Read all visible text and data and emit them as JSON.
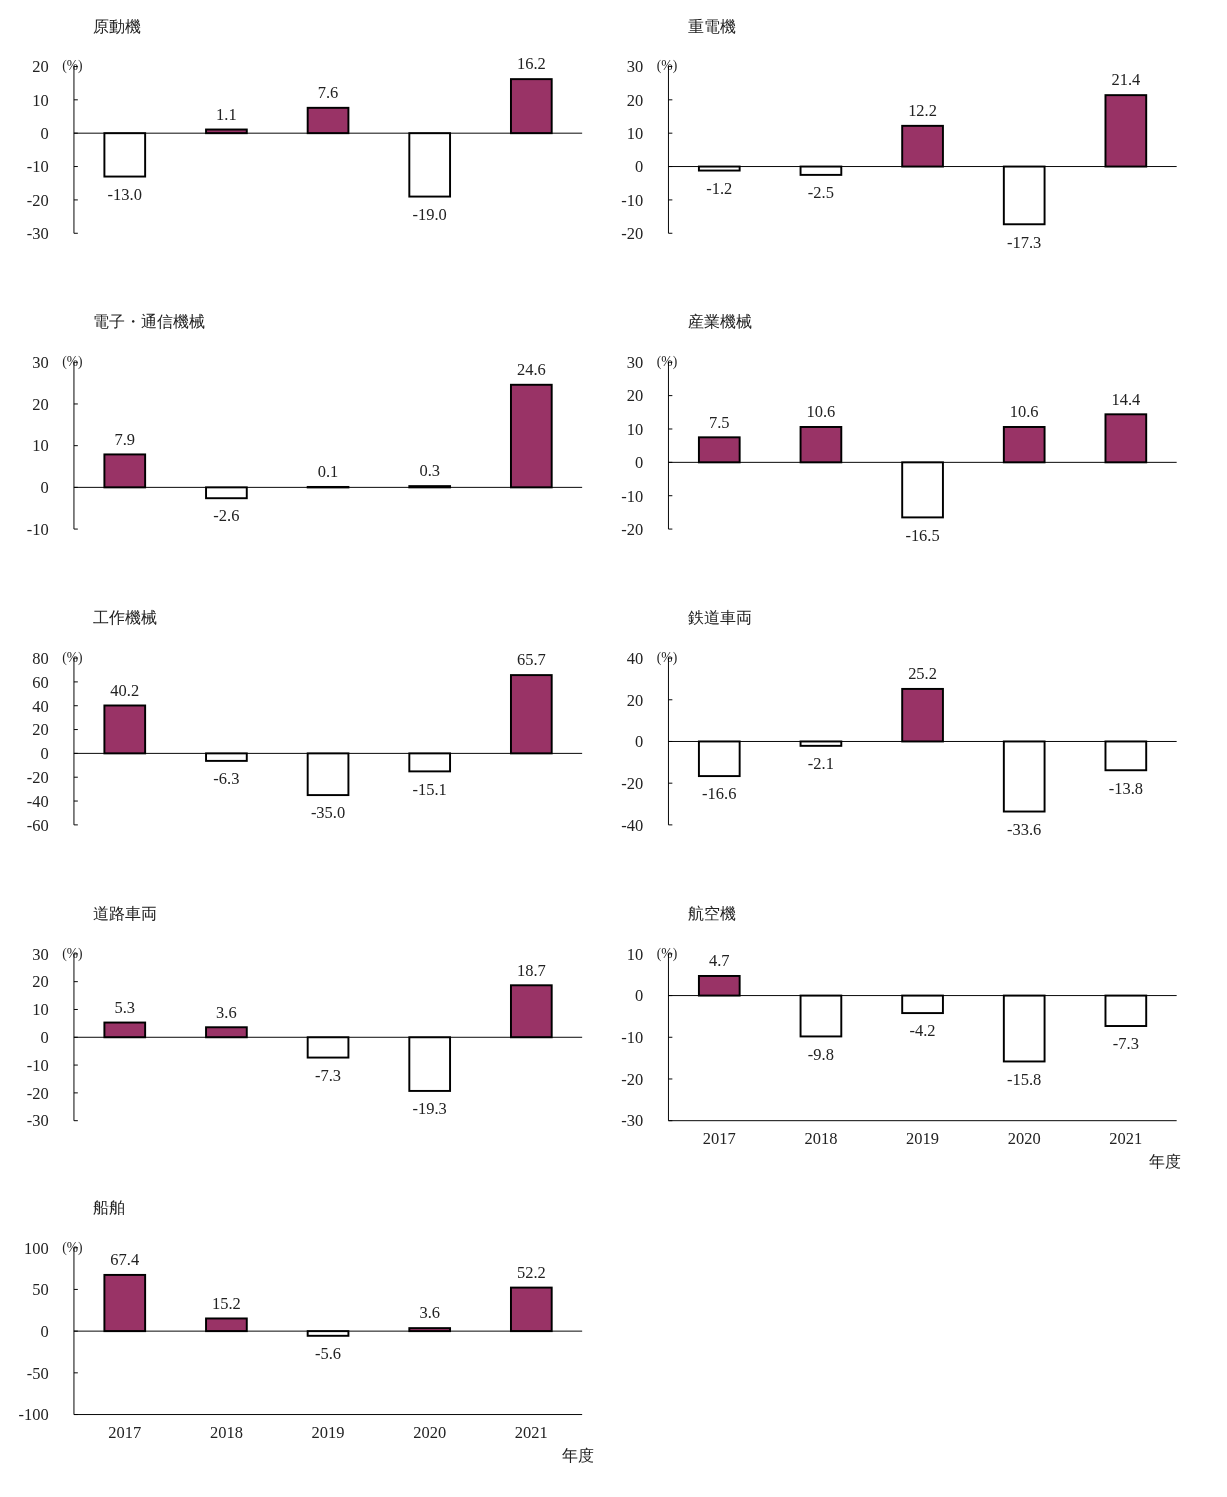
{
  "chart_data": [
    {
      "type": "bar",
      "title": "原動機",
      "ylabel": "(%)",
      "categories": [
        "2017",
        "2018",
        "2019",
        "2020",
        "2021"
      ],
      "values": [
        -13.0,
        1.1,
        7.6,
        -19.0,
        16.2
      ],
      "colors": [
        "#ffffff",
        "#993366",
        "#993366",
        "#ffffff",
        "#993366"
      ],
      "value_labels": [
        "-13.0",
        "1.1",
        "7.6",
        "-19.0",
        "16.2"
      ],
      "ylim": [
        -30,
        20
      ],
      "yticks": [
        -30,
        -20,
        -10,
        0,
        10,
        20
      ],
      "tick_labels": "y",
      "ref_lines": [
        {
          "axis": "y",
          "value": 0
        }
      ]
    },
    {
      "type": "bar",
      "title": "重電機",
      "ylabel": "(%)",
      "categories": [
        "2017",
        "2018",
        "2019",
        "2020",
        "2021"
      ],
      "values": [
        -1.2,
        -2.5,
        12.2,
        -17.3,
        21.4
      ],
      "colors": [
        "#ffffff",
        "#ffffff",
        "#993366",
        "#ffffff",
        "#993366"
      ],
      "value_labels": [
        "-1.2",
        "-2.5",
        "12.2",
        "-17.3",
        "21.4"
      ],
      "ylim": [
        -20,
        30
      ],
      "yticks": [
        -20,
        -10,
        0,
        10,
        20,
        30
      ],
      "tick_labels": "y",
      "ref_lines": [
        {
          "axis": "y",
          "value": 0
        }
      ]
    },
    {
      "type": "bar",
      "title": "電子・通信機械",
      "ylabel": "(%)",
      "categories": [
        "2017",
        "2018",
        "2019",
        "2020",
        "2021"
      ],
      "values": [
        7.9,
        -2.6,
        0.1,
        0.3,
        24.6
      ],
      "colors": [
        "#993366",
        "#ffffff",
        "#993366",
        "#993366",
        "#993366"
      ],
      "value_labels": [
        "7.9",
        "-2.6",
        "0.1",
        "0.3",
        "24.6"
      ],
      "ylim": [
        -10,
        30
      ],
      "yticks": [
        -10,
        0,
        10,
        20,
        30
      ],
      "tick_labels": "y",
      "ref_lines": [
        {
          "axis": "y",
          "value": 0
        }
      ]
    },
    {
      "type": "bar",
      "title": "産業機械",
      "ylabel": "(%)",
      "categories": [
        "2017",
        "2018",
        "2019",
        "2020",
        "2021"
      ],
      "values": [
        7.5,
        10.6,
        -16.5,
        10.6,
        14.4
      ],
      "colors": [
        "#993366",
        "#993366",
        "#ffffff",
        "#993366",
        "#993366"
      ],
      "value_labels": [
        "7.5",
        "10.6",
        "-16.5",
        "10.6",
        "14.4"
      ],
      "ylim": [
        -20,
        30
      ],
      "yticks": [
        -20,
        -10,
        0,
        10,
        20,
        30
      ],
      "tick_labels": "y",
      "ref_lines": [
        {
          "axis": "y",
          "value": 0
        }
      ]
    },
    {
      "type": "bar",
      "title": "工作機械",
      "ylabel": "(%)",
      "categories": [
        "2017",
        "2018",
        "2019",
        "2020",
        "2021"
      ],
      "values": [
        40.2,
        -6.3,
        -35.0,
        -15.1,
        65.7
      ],
      "colors": [
        "#993366",
        "#ffffff",
        "#ffffff",
        "#ffffff",
        "#993366"
      ],
      "value_labels": [
        "40.2",
        "-6.3",
        "-35.0",
        "-15.1",
        "65.7"
      ],
      "ylim": [
        -60,
        80
      ],
      "yticks": [
        -60,
        -40,
        -20,
        0,
        20,
        40,
        60,
        80
      ],
      "tick_labels": "y",
      "ref_lines": [
        {
          "axis": "y",
          "value": 0
        }
      ]
    },
    {
      "type": "bar",
      "title": "鉄道車両",
      "ylabel": "(%)",
      "categories": [
        "2017",
        "2018",
        "2019",
        "2020",
        "2021"
      ],
      "values": [
        -16.6,
        -2.1,
        25.2,
        -33.6,
        -13.8
      ],
      "colors": [
        "#ffffff",
        "#ffffff",
        "#993366",
        "#ffffff",
        "#ffffff"
      ],
      "value_labels": [
        "-16.6",
        "-2.1",
        "25.2",
        "-33.6",
        "-13.8"
      ],
      "ylim": [
        -40,
        40
      ],
      "yticks": [
        -40,
        -20,
        0,
        20,
        40
      ],
      "tick_labels": "y",
      "ref_lines": [
        {
          "axis": "y",
          "value": 0
        }
      ]
    },
    {
      "type": "bar",
      "title": "道路車両",
      "ylabel": "(%)",
      "categories": [
        "2017",
        "2018",
        "2019",
        "2020",
        "2021"
      ],
      "values": [
        5.3,
        3.6,
        -7.3,
        -19.3,
        18.7
      ],
      "colors": [
        "#993366",
        "#993366",
        "#ffffff",
        "#ffffff",
        "#993366"
      ],
      "value_labels": [
        "5.3",
        "3.6",
        "-7.3",
        "-19.3",
        "18.7"
      ],
      "ylim": [
        -30,
        30
      ],
      "yticks": [
        -30,
        -20,
        -10,
        0,
        10,
        20,
        30
      ],
      "tick_labels": "y",
      "ref_lines": [
        {
          "axis": "y",
          "value": 0
        }
      ]
    },
    {
      "type": "bar",
      "title": "航空機",
      "ylabel": "(%)",
      "xlabel": "年度",
      "categories": [
        "2017",
        "2018",
        "2019",
        "2020",
        "2021"
      ],
      "values": [
        4.7,
        -9.8,
        -4.2,
        -15.8,
        -7.3
      ],
      "colors": [
        "#993366",
        "#ffffff",
        "#ffffff",
        "#ffffff",
        "#ffffff"
      ],
      "value_labels": [
        "4.7",
        "-9.8",
        "-4.2",
        "-15.8",
        "-7.3"
      ],
      "ylim": [
        -30,
        10
      ],
      "yticks": [
        -30,
        -20,
        -10,
        0,
        10
      ],
      "ref_lines": [
        {
          "axis": "y",
          "value": 0
        }
      ]
    },
    {
      "type": "bar",
      "title": "船舶",
      "ylabel": "(%)",
      "xlabel": "年度",
      "categories": [
        "2017",
        "2018",
        "2019",
        "2020",
        "2021"
      ],
      "values": [
        67.4,
        15.2,
        -5.6,
        3.6,
        52.2
      ],
      "colors": [
        "#993366",
        "#993366",
        "#ffffff",
        "#993366",
        "#993366"
      ],
      "value_labels": [
        "67.4",
        "15.2",
        "-5.6",
        "3.6",
        "52.2"
      ],
      "ylim": [
        -100,
        100
      ],
      "yticks": [
        -100,
        -50,
        0,
        50,
        100
      ],
      "ref_lines": [
        {
          "axis": "y",
          "value": 0
        }
      ]
    }
  ]
}
